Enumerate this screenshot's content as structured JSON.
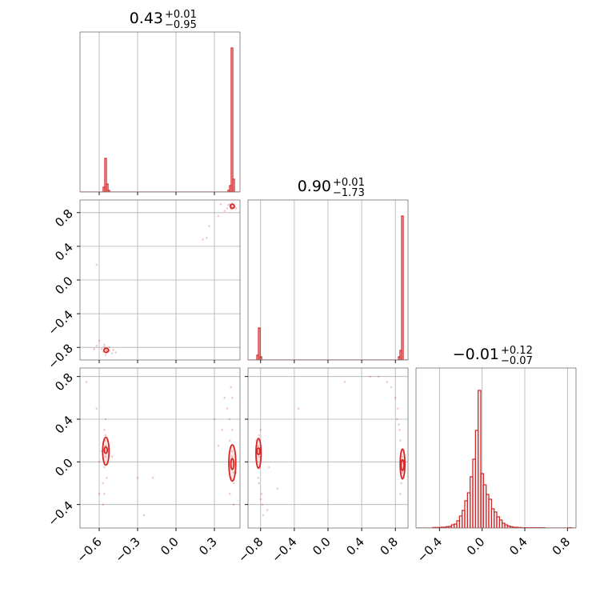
{
  "colors": {
    "accent": "#d62728",
    "grid": "#b0b0b0",
    "frame": "#808080"
  },
  "chart_data": {
    "type": "corner",
    "grid": true,
    "titles": [
      {
        "param": 0,
        "median": "0.43",
        "plus": "+0.01",
        "minus": "−0.95"
      },
      {
        "param": 1,
        "median": "0.90",
        "plus": "+0.01",
        "minus": "−1.73"
      },
      {
        "param": 2,
        "median": "−0.01",
        "plus": "+0.12",
        "minus": "−0.07"
      }
    ],
    "axes": [
      {
        "range": [
          -0.75,
          0.5
        ],
        "ticks": [
          -0.6,
          -0.3,
          0.0,
          0.3
        ],
        "tick_labels": [
          "−0.6",
          "−0.3",
          "0.0",
          "0.3"
        ]
      },
      {
        "range": [
          -0.95,
          0.95
        ],
        "ticks": [
          -0.8,
          -0.4,
          0.0,
          0.4,
          0.8
        ],
        "tick_labels": [
          "−0.8",
          "−0.4",
          "0.0",
          "0.4",
          "0.8"
        ]
      },
      {
        "range": [
          -0.62,
          0.88
        ],
        "ticks": [
          -0.4,
          0.0,
          0.4,
          0.8
        ],
        "tick_labels": [
          "−0.4",
          "0.0",
          "0.4",
          "0.8"
        ]
      }
    ],
    "histograms": [
      {
        "param": 0,
        "bin_width": 0.0125,
        "bins": [
          [
            -0.5625,
            0.03
          ],
          [
            -0.55,
            0.21
          ],
          [
            -0.5375,
            0.05
          ],
          [
            -0.525,
            0.01
          ],
          [
            0.4125,
            0.01
          ],
          [
            0.425,
            0.04
          ],
          [
            0.4375,
            0.9
          ],
          [
            0.45,
            0.08
          ]
        ]
      },
      {
        "param": 1,
        "bin_width": 0.019,
        "bins": [
          [
            -0.8355,
            0.03
          ],
          [
            -0.8165,
            0.2
          ],
          [
            -0.7975,
            0.02
          ],
          [
            0.8455,
            0.02
          ],
          [
            0.8645,
            0.06
          ],
          [
            0.8835,
            0.9
          ]
        ]
      },
      {
        "param": 2,
        "bin_width": 0.025,
        "bins": [
          [
            -0.45,
            0.003
          ],
          [
            -0.425,
            0.003
          ],
          [
            -0.4,
            0.003
          ],
          [
            -0.375,
            0.005
          ],
          [
            -0.35,
            0.005
          ],
          [
            -0.325,
            0.008
          ],
          [
            -0.3,
            0.01
          ],
          [
            -0.275,
            0.02
          ],
          [
            -0.25,
            0.025
          ],
          [
            -0.225,
            0.045
          ],
          [
            -0.2,
            0.075
          ],
          [
            -0.175,
            0.11
          ],
          [
            -0.15,
            0.17
          ],
          [
            -0.125,
            0.22
          ],
          [
            -0.1,
            0.32
          ],
          [
            -0.075,
            0.43
          ],
          [
            -0.05,
            0.61
          ],
          [
            -0.025,
            0.86
          ],
          [
            0.0,
            0.34
          ],
          [
            0.025,
            0.27
          ],
          [
            0.05,
            0.21
          ],
          [
            0.075,
            0.18
          ],
          [
            0.1,
            0.12
          ],
          [
            0.125,
            0.1
          ],
          [
            0.15,
            0.07
          ],
          [
            0.175,
            0.05
          ],
          [
            0.2,
            0.03
          ],
          [
            0.225,
            0.02
          ],
          [
            0.25,
            0.012
          ],
          [
            0.275,
            0.008
          ],
          [
            0.3,
            0.005
          ],
          [
            0.325,
            0.004
          ],
          [
            0.35,
            0.003
          ],
          [
            0.375,
            0.002
          ],
          [
            0.4,
            0.002
          ],
          [
            0.425,
            0.002
          ],
          [
            0.45,
            0.002
          ],
          [
            0.475,
            0.002
          ],
          [
            0.5,
            0.002
          ],
          [
            0.525,
            0.002
          ],
          [
            0.55,
            0.002
          ],
          [
            0.575,
            0.002
          ],
          [
            0.825,
            0.002
          ]
        ]
      }
    ],
    "scatter": [
      {
        "x_param": 0,
        "y_param": 1,
        "points": [
          [
            -0.55,
            -0.82
          ],
          [
            -0.54,
            -0.84
          ],
          [
            -0.56,
            -0.8
          ],
          [
            -0.53,
            -0.83
          ],
          [
            -0.57,
            -0.85
          ],
          [
            -0.52,
            -0.84
          ],
          [
            -0.58,
            -0.82
          ],
          [
            -0.5,
            -0.87
          ],
          [
            -0.56,
            -0.77
          ],
          [
            -0.6,
            -0.72
          ],
          [
            -0.52,
            -0.8
          ],
          [
            -0.49,
            -0.83
          ],
          [
            -0.62,
            -0.78
          ],
          [
            -0.47,
            -0.86
          ],
          [
            -0.64,
            -0.82
          ],
          [
            0.43,
            0.88
          ],
          [
            0.44,
            0.86
          ],
          [
            0.45,
            0.89
          ],
          [
            0.46,
            0.87
          ],
          [
            0.42,
            0.9
          ],
          [
            0.41,
            0.89
          ],
          [
            0.44,
            0.91
          ],
          [
            0.47,
            0.85
          ],
          [
            0.43,
            0.84
          ],
          [
            0.45,
            0.86
          ],
          [
            0.38,
            0.82
          ],
          [
            0.33,
            0.76
          ],
          [
            0.26,
            0.64
          ],
          [
            0.21,
            0.48
          ],
          [
            0.24,
            0.5
          ],
          [
            0.4,
            0.85
          ],
          [
            0.35,
            0.9
          ],
          [
            -0.62,
            0.18
          ],
          [
            -0.55,
            -0.89
          ]
        ],
        "contours": [
          {
            "cx": -0.545,
            "cy": -0.835,
            "rx": 0.018,
            "ry": 0.025,
            "angle": -10
          },
          {
            "cx": 0.44,
            "cy": 0.875,
            "rx": 0.016,
            "ry": 0.025,
            "angle": 0
          }
        ]
      },
      {
        "x_param": 0,
        "y_param": 2,
        "points": [
          [
            -0.56,
            0.1
          ],
          [
            -0.55,
            0.15
          ],
          [
            -0.55,
            0.05
          ],
          [
            -0.56,
            -0.05
          ],
          [
            -0.55,
            0.25
          ],
          [
            -0.54,
            -0.15
          ],
          [
            -0.56,
            0.3
          ],
          [
            -0.57,
            -0.2
          ],
          [
            -0.53,
            0.0
          ],
          [
            -0.55,
            0.2
          ],
          [
            -0.58,
            0.1
          ],
          [
            -0.52,
            0.12
          ],
          [
            -0.56,
            -0.3
          ],
          [
            -0.55,
            0.4
          ],
          [
            -0.6,
            0.0
          ],
          [
            -0.5,
            0.05
          ],
          [
            -0.57,
            -0.4
          ],
          [
            -0.62,
            0.5
          ],
          [
            -0.7,
            0.75
          ],
          [
            -0.6,
            -0.3
          ],
          [
            -0.3,
            -0.15
          ],
          [
            -0.18,
            -0.15
          ],
          [
            -0.25,
            -0.5
          ],
          [
            0.43,
            0.0
          ],
          [
            0.44,
            0.05
          ],
          [
            0.43,
            -0.05
          ],
          [
            0.45,
            -0.1
          ],
          [
            0.44,
            0.1
          ],
          [
            0.42,
            0.2
          ],
          [
            0.43,
            -0.15
          ],
          [
            0.45,
            -0.2
          ],
          [
            0.44,
            0.3
          ],
          [
            0.42,
            0.4
          ],
          [
            0.4,
            0.5
          ],
          [
            0.42,
            -0.3
          ],
          [
            0.44,
            0.6
          ],
          [
            0.38,
            0.6
          ],
          [
            0.43,
            0.7
          ],
          [
            0.3,
            0.4
          ],
          [
            0.45,
            -0.4
          ],
          [
            0.33,
            0.15
          ],
          [
            0.47,
            -0.1
          ],
          [
            0.36,
            0.3
          ]
        ],
        "contours": [
          {
            "cx": -0.548,
            "cy": 0.11,
            "rx": 0.012,
            "ry": 0.03,
            "angle": 0
          },
          {
            "cx": -0.548,
            "cy": 0.1,
            "rx": 0.025,
            "ry": 0.13,
            "angle": 0
          },
          {
            "cx": 0.44,
            "cy": -0.02,
            "rx": 0.012,
            "ry": 0.05,
            "angle": 0
          },
          {
            "cx": 0.44,
            "cy": -0.01,
            "rx": 0.027,
            "ry": 0.17,
            "angle": 0
          }
        ]
      },
      {
        "x_param": 1,
        "y_param": 2,
        "points": [
          [
            -0.82,
            0.1
          ],
          [
            -0.83,
            0.15
          ],
          [
            -0.82,
            0.05
          ],
          [
            -0.81,
            -0.05
          ],
          [
            -0.82,
            0.25
          ],
          [
            -0.83,
            -0.15
          ],
          [
            -0.8,
            0.3
          ],
          [
            -0.82,
            -0.2
          ],
          [
            -0.84,
            0.0
          ],
          [
            -0.81,
            0.2
          ],
          [
            -0.79,
            -0.3
          ],
          [
            -0.78,
            -0.4
          ],
          [
            -0.77,
            -0.5
          ],
          [
            -0.8,
            -0.35
          ],
          [
            -0.7,
            -0.05
          ],
          [
            -0.72,
            -0.45
          ],
          [
            -0.6,
            -0.25
          ],
          [
            -0.85,
            0.2
          ],
          [
            -0.35,
            0.5
          ],
          [
            0.88,
            0.0
          ],
          [
            0.87,
            0.1
          ],
          [
            0.88,
            -0.1
          ],
          [
            0.86,
            0.2
          ],
          [
            0.87,
            -0.2
          ],
          [
            0.85,
            0.3
          ],
          [
            0.83,
            0.5
          ],
          [
            0.8,
            0.6
          ],
          [
            0.75,
            0.7
          ],
          [
            0.7,
            0.75
          ],
          [
            0.6,
            0.8
          ],
          [
            0.5,
            0.8
          ],
          [
            0.82,
            0.4
          ],
          [
            0.86,
            -0.3
          ],
          [
            0.2,
            0.75
          ],
          [
            0.84,
            0.35
          ],
          [
            0.88,
            0.05
          ]
        ],
        "contours": [
          {
            "cx": -0.825,
            "cy": 0.1,
            "rx": 0.018,
            "ry": 0.03,
            "angle": 0
          },
          {
            "cx": -0.825,
            "cy": 0.08,
            "rx": 0.03,
            "ry": 0.14,
            "angle": 0
          },
          {
            "cx": 0.885,
            "cy": -0.03,
            "rx": 0.018,
            "ry": 0.05,
            "angle": 0
          },
          {
            "cx": 0.885,
            "cy": -0.02,
            "rx": 0.028,
            "ry": 0.14,
            "angle": 0
          }
        ]
      }
    ]
  }
}
